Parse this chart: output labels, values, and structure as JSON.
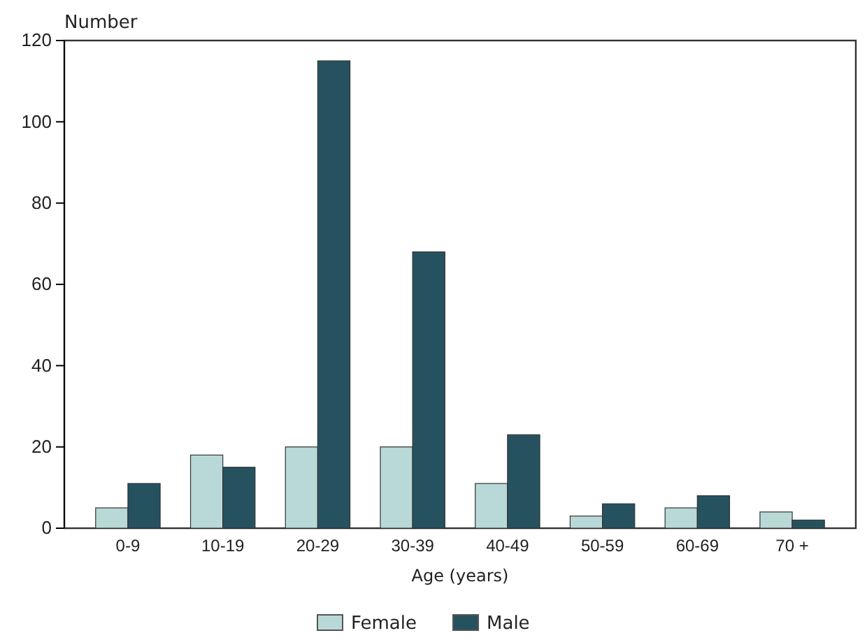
{
  "chart_data": {
    "type": "bar",
    "ylabel": "Number",
    "xlabel": "Age (years)",
    "categories": [
      "0-9",
      "10-19",
      "20-29",
      "30-39",
      "40-49",
      "50-59",
      "60-69",
      "70 +"
    ],
    "series": [
      {
        "name": "Female",
        "color": "#b9d9d8",
        "values": [
          5,
          18,
          20,
          20,
          11,
          3,
          5,
          4
        ]
      },
      {
        "name": "Male",
        "color": "#265260",
        "values": [
          11,
          15,
          115,
          68,
          23,
          6,
          8,
          2
        ]
      }
    ],
    "ylim": [
      0,
      120
    ],
    "yticks": [
      0,
      20,
      40,
      60,
      80,
      100,
      120
    ],
    "grid": false,
    "legend": "bottom"
  }
}
